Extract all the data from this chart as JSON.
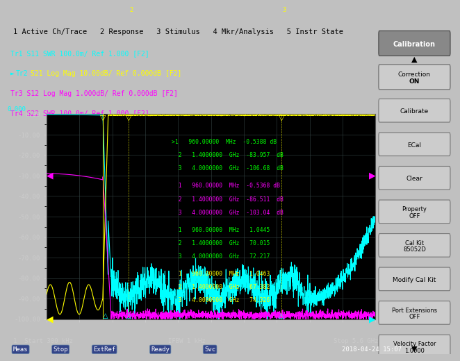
{
  "bg_color": "#000000",
  "plot_bg": "#000000",
  "frame_color": "#333333",
  "grid_color": "#333355",
  "top_bar_color": "#c0c0c0",
  "top_bar_text_color": "#000000",
  "top_bar_text": "1 Active Ch/Trace   2 Response   3 Stimulus   4 Mkr/Analysis   5 Instr State",
  "legend_lines": [
    {
      "text": "Tr1 S11 SWR 100.0m/ Ref 1.000 [F2]",
      "color": "#00ffff"
    },
    {
      "text": "►Tr22 S21 Log Mag 10.00dB/ Ref 0.000dB [F2]",
      "color": "#ffff00"
    },
    {
      "text": "Tr3 S12 Log Mag 1.000dB/ Ref 0.000dB [F2]",
      "color": "#ff00ff"
    },
    {
      "text": "Tr4 S22 SWR 100.0m/ Ref 1.000 [F2]",
      "color": "#ff00ff"
    }
  ],
  "ymin": -100.0,
  "ymax": 0.0,
  "xmin": 0.0,
  "xmax": 5.6,
  "ylabel_ref": "0.000",
  "yticks": [
    0,
    -10,
    -20,
    -30,
    -40,
    -50,
    -60,
    -70,
    -80,
    -90,
    -100
  ],
  "status_bar_color": "#003399",
  "status_bar_items": [
    "Meas",
    "Stop",
    "ExtRef",
    "Ready",
    "Svc"
  ],
  "bottom_text_left": "1  Start 300 kHz",
  "bottom_text_mid": "IFBW 1 kHz",
  "bottom_text_right": "Stop 5.6 GHz  Cor",
  "date_text": "2018-04-24 15:07",
  "right_panel_color": "#aaaaaa",
  "right_panel_buttons": [
    "Calibration",
    "Correction\nON",
    "Calibrate",
    "ECal",
    "Clear",
    "Property\nOFF",
    "Cal Kit\n85052D",
    "Modify Cal Kit",
    "Port Extensions\nOFF",
    "Velocity Factor\n1.0000"
  ],
  "marker_annotations": [
    {
      "color": "#00ff00",
      "lines": [
        ">1   960.00000  MHz   -0.5388  dB",
        "  2   1.4000000  GHz   -83.957  dB",
        "  3   4.0000000  GHz   -106.68  dB"
      ]
    },
    {
      "color": "#ff00ff",
      "lines": [
        "  1   960.00000  MHz   -0.5368  dB",
        "  2   1.4000000  GHz   -86.511  dB",
        "  3   4.0000000  GHz   -103.04  dB"
      ]
    },
    {
      "color": "#00ff00",
      "lines": [
        "  1   960.00000  MHz   1.0445",
        "  2   1.4000000  GHz   70.015",
        "  3   4.0000000  GHz   72.217"
      ]
    },
    {
      "color": "#ffff00",
      "lines": [
        "  1   960.00000  MHz   1.0463",
        "  2   1.4000000  GHz   67.382",
        "  3   4.0000000  GHz   74.326"
      ]
    }
  ]
}
